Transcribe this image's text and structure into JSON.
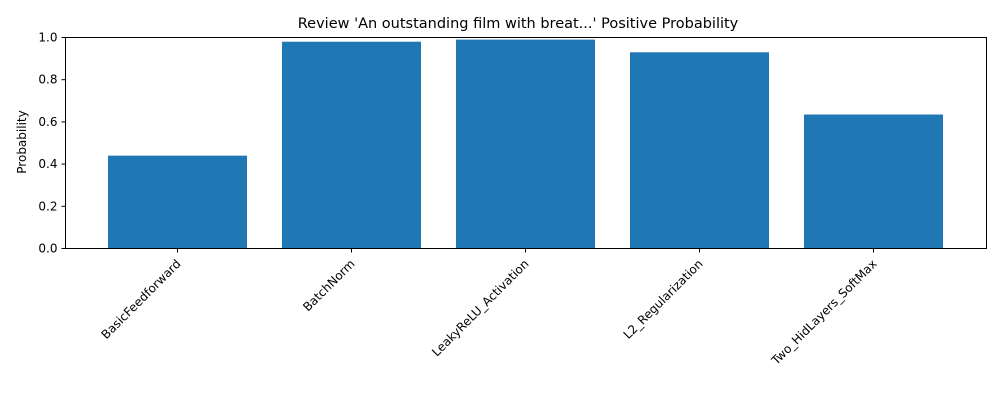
{
  "chart_data": {
    "type": "bar",
    "title": "Review 'An outstanding film with breat...' Positive Probability",
    "xlabel": "",
    "ylabel": "Probability",
    "categories": [
      "BasicFeedforward",
      "BatchNorm",
      "LeakyReLU_Activation",
      "L2_Regularization",
      "Two_HidLayers_SoftMax"
    ],
    "values": [
      0.44,
      0.98,
      0.99,
      0.93,
      0.635
    ],
    "ylim": [
      0,
      1.0
    ],
    "yticks": [
      "0.0",
      "0.2",
      "0.4",
      "0.6",
      "0.8",
      "1.0"
    ],
    "grid": false,
    "bar_color": "#1f77b4"
  }
}
